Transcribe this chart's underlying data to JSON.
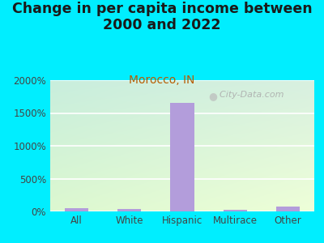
{
  "title": "Change in per capita income between\n2000 and 2022",
  "subtitle": "Morocco, IN",
  "categories": [
    "All",
    "White",
    "Hispanic",
    "Multirace",
    "Other"
  ],
  "values": [
    50,
    40,
    1650,
    30,
    80
  ],
  "bar_color": "#b39ddb",
  "title_fontsize": 12.5,
  "subtitle_fontsize": 10,
  "subtitle_color": "#b85c00",
  "title_color": "#1a1a1a",
  "background_color": "#00eeff",
  "plot_bg_color_tl": "#c8eedd",
  "plot_bg_color_br": "#eeffd8",
  "ylim": [
    0,
    2000
  ],
  "yticks": [
    0,
    500,
    1000,
    1500,
    2000
  ],
  "ytick_labels": [
    "0%",
    "500%",
    "1000%",
    "1500%",
    "2000%"
  ],
  "watermark": "  City-Data.com",
  "watermark_color": "#aaaaaa"
}
